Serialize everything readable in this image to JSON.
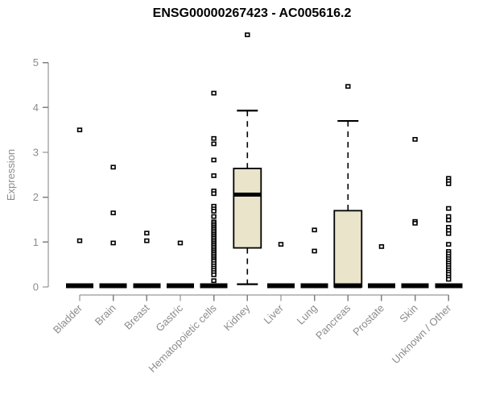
{
  "title": "ENSG00000267423 - AC005616.2",
  "chart_data": {
    "type": "boxplot",
    "title": "ENSG00000267423 - AC005616.2",
    "xlabel": "",
    "ylabel": "Expression",
    "ylim": [
      0,
      5
    ],
    "yticks": [
      0,
      1,
      2,
      3,
      4,
      5
    ],
    "grid": false,
    "legend": "none",
    "categories": [
      "Bladder",
      "Brain",
      "Breast",
      "Gastric",
      "Hematopoietic cells",
      "Kidney",
      "Liver",
      "Lung",
      "Pancreas",
      "Prostate",
      "Skin",
      "Unknown / Other"
    ],
    "series": [
      {
        "category": "Bladder",
        "q1": 0,
        "median": 0,
        "q3": 0,
        "whisker_low": 0,
        "whisker_high": 0,
        "outliers": [
          3.5,
          1.03
        ]
      },
      {
        "category": "Brain",
        "q1": 0,
        "median": 0,
        "q3": 0,
        "whisker_low": 0,
        "whisker_high": 0,
        "outliers": [
          2.67,
          1.65,
          0.98
        ]
      },
      {
        "category": "Breast",
        "q1": 0,
        "median": 0,
        "q3": 0,
        "whisker_low": 0,
        "whisker_high": 0,
        "outliers": [
          1.2,
          1.03
        ]
      },
      {
        "category": "Gastric",
        "q1": 0,
        "median": 0,
        "q3": 0,
        "whisker_low": 0,
        "whisker_high": 0,
        "outliers": [
          0.98
        ]
      },
      {
        "category": "Hematopoietic cells",
        "q1": 0,
        "median": 0,
        "q3": 0,
        "whisker_low": 0,
        "whisker_high": 0,
        "outliers": [
          4.32,
          3.31,
          3.19,
          2.83,
          2.48,
          2.14,
          2.08,
          1.8,
          1.74,
          1.69,
          1.57,
          1.45,
          1.41,
          1.37,
          1.33,
          1.29,
          1.25,
          1.21,
          1.17,
          1.13,
          1.09,
          1.05,
          1.01,
          0.97,
          0.93,
          0.89,
          0.85,
          0.81,
          0.77,
          0.73,
          0.69,
          0.65,
          0.61,
          0.57,
          0.52,
          0.47,
          0.42,
          0.37,
          0.32,
          0.27,
          0.14
        ]
      },
      {
        "category": "Kidney",
        "q1": 0.87,
        "median": 2.04,
        "q3": 2.64,
        "whisker_low": 0.06,
        "whisker_high": 3.93,
        "outliers": [
          5.62
        ]
      },
      {
        "category": "Liver",
        "q1": 0,
        "median": 0,
        "q3": 0,
        "whisker_low": 0,
        "whisker_high": 0,
        "outliers": [
          0.95
        ]
      },
      {
        "category": "Lung",
        "q1": 0,
        "median": 0,
        "q3": 0,
        "whisker_low": 0,
        "whisker_high": 0,
        "outliers": [
          1.27,
          0.8
        ]
      },
      {
        "category": "Pancreas",
        "q1": 0,
        "median": 0,
        "q3": 1.7,
        "whisker_low": 0,
        "whisker_high": 3.7,
        "outliers": [
          4.47
        ]
      },
      {
        "category": "Prostate",
        "q1": 0,
        "median": 0,
        "q3": 0,
        "whisker_low": 0,
        "whisker_high": 0,
        "outliers": [
          0.9
        ]
      },
      {
        "category": "Skin",
        "q1": 0,
        "median": 0,
        "q3": 0,
        "whisker_low": 0,
        "whisker_high": 0,
        "outliers": [
          3.29,
          1.46,
          1.42
        ]
      },
      {
        "category": "Unknown / Other",
        "q1": 0,
        "median": 0,
        "q3": 0,
        "whisker_low": 0,
        "whisker_high": 0,
        "outliers": [
          2.42,
          2.36,
          2.3,
          1.75,
          1.57,
          1.49,
          1.33,
          1.26,
          1.19,
          0.95,
          0.79,
          0.74,
          0.68,
          0.63,
          0.58,
          0.53,
          0.48,
          0.43,
          0.38,
          0.33,
          0.28,
          0.22,
          0.17
        ]
      }
    ],
    "colors": {
      "box_fill": "#EAE4CB",
      "box_stroke": "#000000",
      "median": "#000000",
      "outlier_stroke": "#000000",
      "outlier_fill": "#ffffff",
      "axis": "#7f7f7f",
      "tick_label": "#8c8c8c",
      "title": "#000000",
      "background": "#ffffff"
    }
  }
}
